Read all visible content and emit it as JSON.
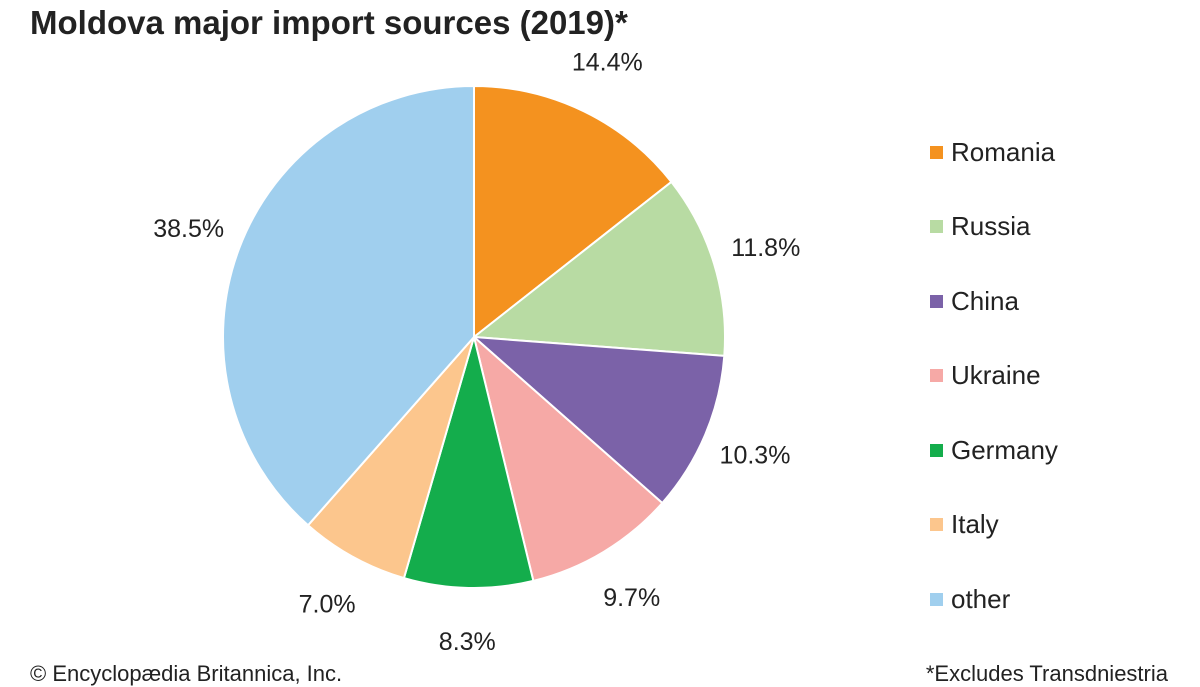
{
  "chart_data": {
    "type": "pie",
    "title": "Moldova major import sources (2019)*",
    "categories": [
      "Romania",
      "Russia",
      "China",
      "Ukraine",
      "Germany",
      "Italy",
      "other"
    ],
    "values": [
      14.4,
      11.8,
      10.3,
      9.7,
      8.3,
      7.0,
      38.5
    ],
    "labels": [
      "14.4%",
      "11.8%",
      "10.3%",
      "9.7%",
      "8.3%",
      "7.0%",
      "38.5%"
    ],
    "colors": [
      "#F4921F",
      "#B8DBA3",
      "#7B62A8",
      "#F6A9A6",
      "#14AD4C",
      "#FCC68D",
      "#A0CFEE"
    ],
    "legend_position": "right",
    "start_angle": "top",
    "direction": "clockwise"
  },
  "footer": {
    "credit": "© Encyclopædia Britannica, Inc.",
    "note": "*Excludes Transdniestria"
  }
}
